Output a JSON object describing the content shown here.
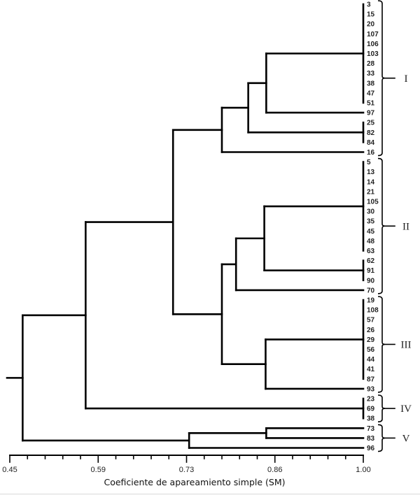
{
  "chart_data": {
    "type": "dendrogram",
    "orientation": "horizontal",
    "xlabel": "Coeficiente de apareamiento simple (SM)",
    "xlim": [
      0.45,
      1.0
    ],
    "tick_labels": [
      "0.45",
      "0.59",
      "0.73",
      "0.86",
      "1.00"
    ],
    "major_ticks": [
      0.45,
      0.5875,
      0.725,
      0.8625,
      1.0
    ],
    "minor_tick_step": 0.0275,
    "line_color": "#000000",
    "tree": {
      "height": 0.47,
      "children": [
        {
          "height": 0.568,
          "children": [
            {
              "height": 0.704,
              "children": [
                {
                  "height": 0.78,
                  "children": [
                    {
                      "height": 0.821,
                      "children": [
                        {
                          "height": 0.849,
                          "children": [
                            {
                              "height": 1.0,
                              "children": [
                                "3",
                                "15",
                                "20",
                                "107",
                                "106",
                                "103",
                                "28",
                                "33",
                                "38",
                                "47",
                                "51"
                              ]
                            },
                            "97"
                          ]
                        },
                        {
                          "height": 1.0,
                          "children": [
                            "25",
                            "82",
                            "84"
                          ]
                        }
                      ]
                    },
                    "16"
                  ]
                },
                {
                  "height": 0.78,
                  "children": [
                    {
                      "height": 0.802,
                      "children": [
                        {
                          "height": 0.846,
                          "children": [
                            {
                              "height": 1.0,
                              "children": [
                                "5",
                                "13",
                                "14",
                                "21",
                                "105",
                                "30",
                                "35",
                                "45",
                                "48",
                                "63"
                              ]
                            },
                            {
                              "height": 1.0,
                              "children": [
                                "62",
                                "91",
                                "90"
                              ]
                            }
                          ]
                        },
                        "70"
                      ]
                    },
                    {
                      "height": 0.848,
                      "children": [
                        {
                          "height": 1.0,
                          "children": [
                            "19",
                            "108",
                            "57",
                            "26",
                            "29",
                            "56",
                            "44",
                            "41",
                            "87"
                          ]
                        },
                        "93"
                      ]
                    }
                  ]
                }
              ]
            },
            {
              "height": 1.0,
              "children": [
                "23",
                "69",
                "38"
              ]
            }
          ]
        },
        {
          "height": 0.729,
          "children": [
            {
              "height": 0.849,
              "children": [
                "73",
                "83"
              ]
            },
            "96"
          ]
        }
      ]
    },
    "groups": [
      {
        "label": "I",
        "first": "3",
        "last": "16"
      },
      {
        "label": "II",
        "first": "5",
        "last": "70"
      },
      {
        "label": "III",
        "first": "19",
        "last": "93"
      },
      {
        "label": "IV",
        "first": "23",
        "last": "38"
      },
      {
        "label": "V",
        "first": "73",
        "last": "96"
      }
    ]
  }
}
